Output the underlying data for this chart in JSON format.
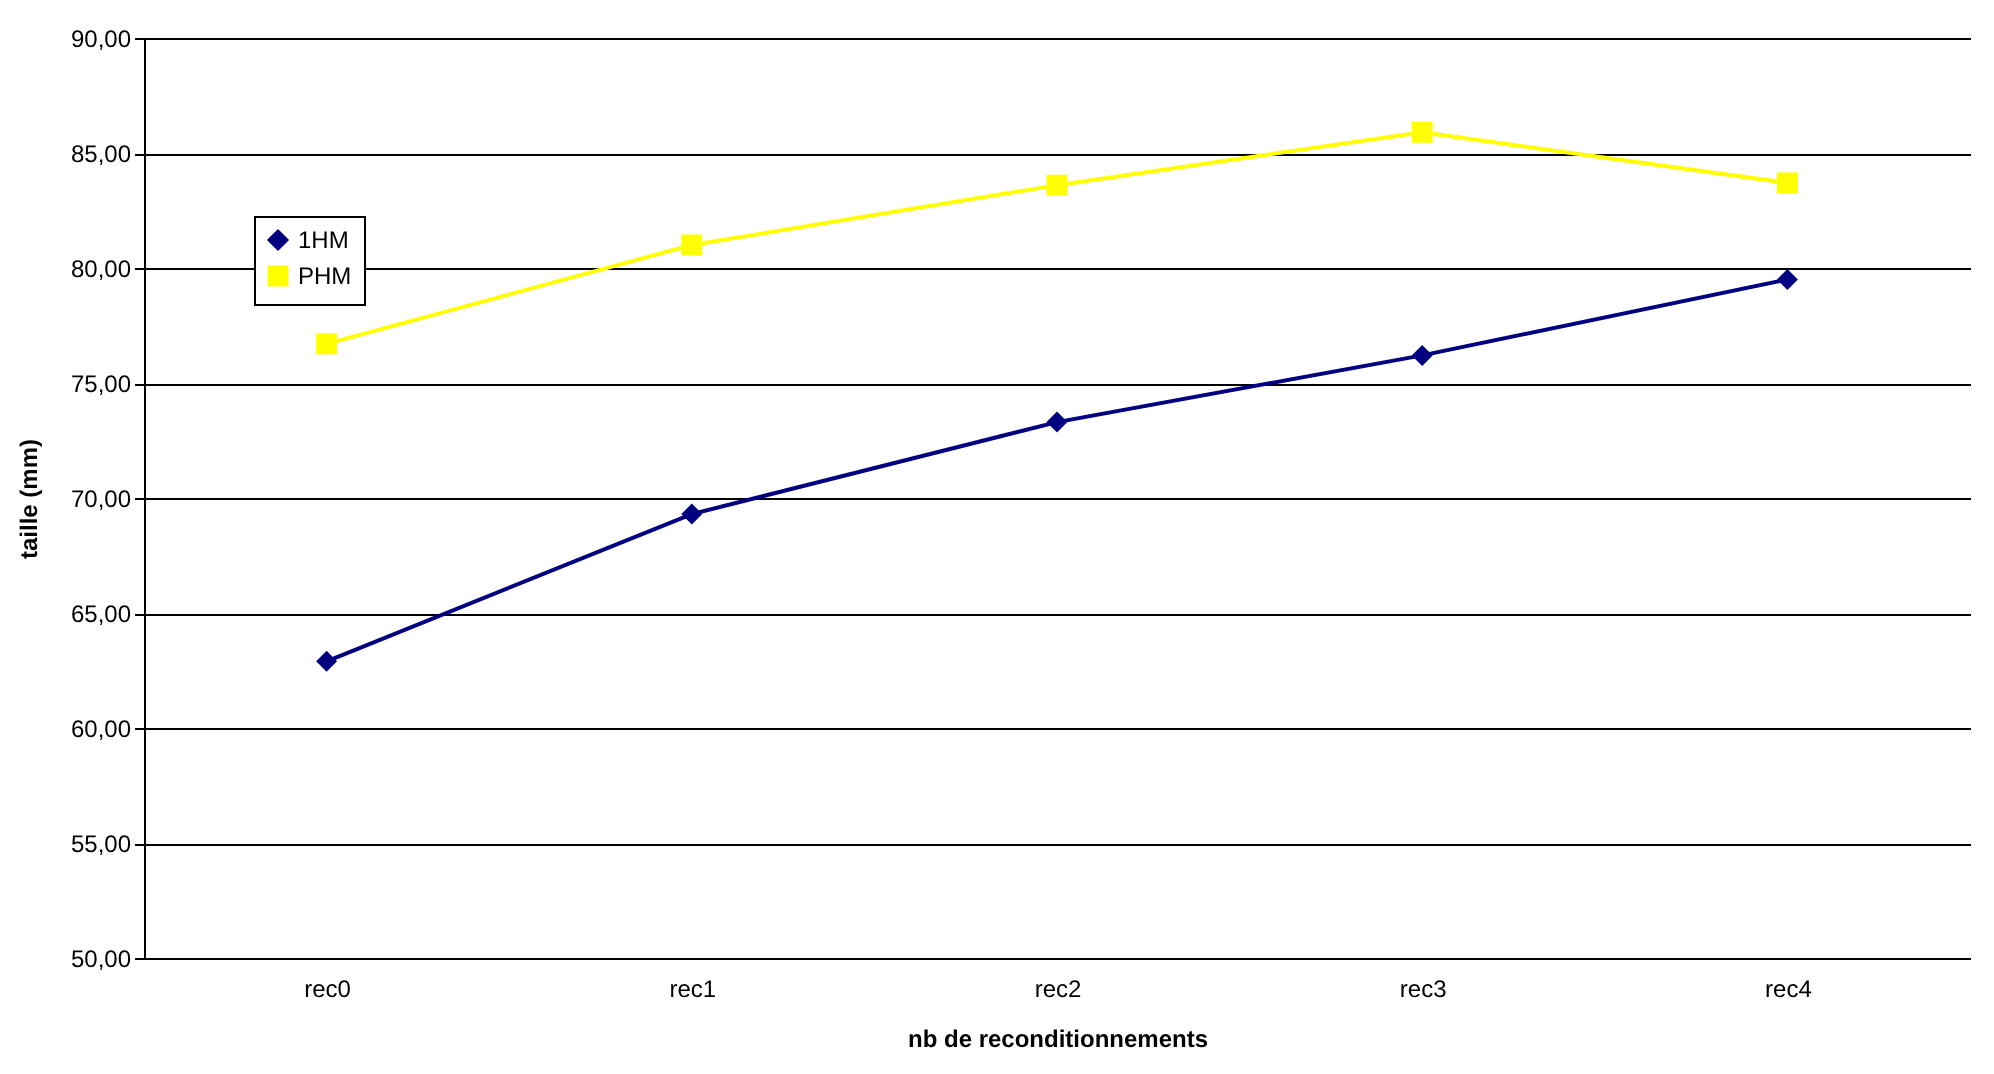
{
  "chart_data": {
    "type": "line",
    "xlabel": "nb de reconditionnements",
    "ylabel": "taille (mm)",
    "categories": [
      "rec0",
      "rec1",
      "rec2",
      "rec3",
      "rec4"
    ],
    "series": [
      {
        "name": "1HM",
        "color": "#000080",
        "marker": "diamond",
        "values": [
          62.9,
          69.3,
          73.3,
          76.2,
          79.5
        ]
      },
      {
        "name": "PHM",
        "color": "#ffff00",
        "marker": "square",
        "values": [
          76.7,
          81.0,
          83.6,
          85.9,
          83.7
        ]
      }
    ],
    "ylim": [
      50,
      90
    ],
    "yticks": [
      {
        "value": 50,
        "label": "50,00"
      },
      {
        "value": 55,
        "label": "55,00"
      },
      {
        "value": 60,
        "label": "60,00"
      },
      {
        "value": 65,
        "label": "65,00"
      },
      {
        "value": 70,
        "label": "70,00"
      },
      {
        "value": 75,
        "label": "75,00"
      },
      {
        "value": 80,
        "label": "80,00"
      },
      {
        "value": 85,
        "label": "85,00"
      },
      {
        "value": 90,
        "label": "90,00"
      }
    ],
    "grid": "y",
    "legend": "top left",
    "line_style": "solid"
  }
}
